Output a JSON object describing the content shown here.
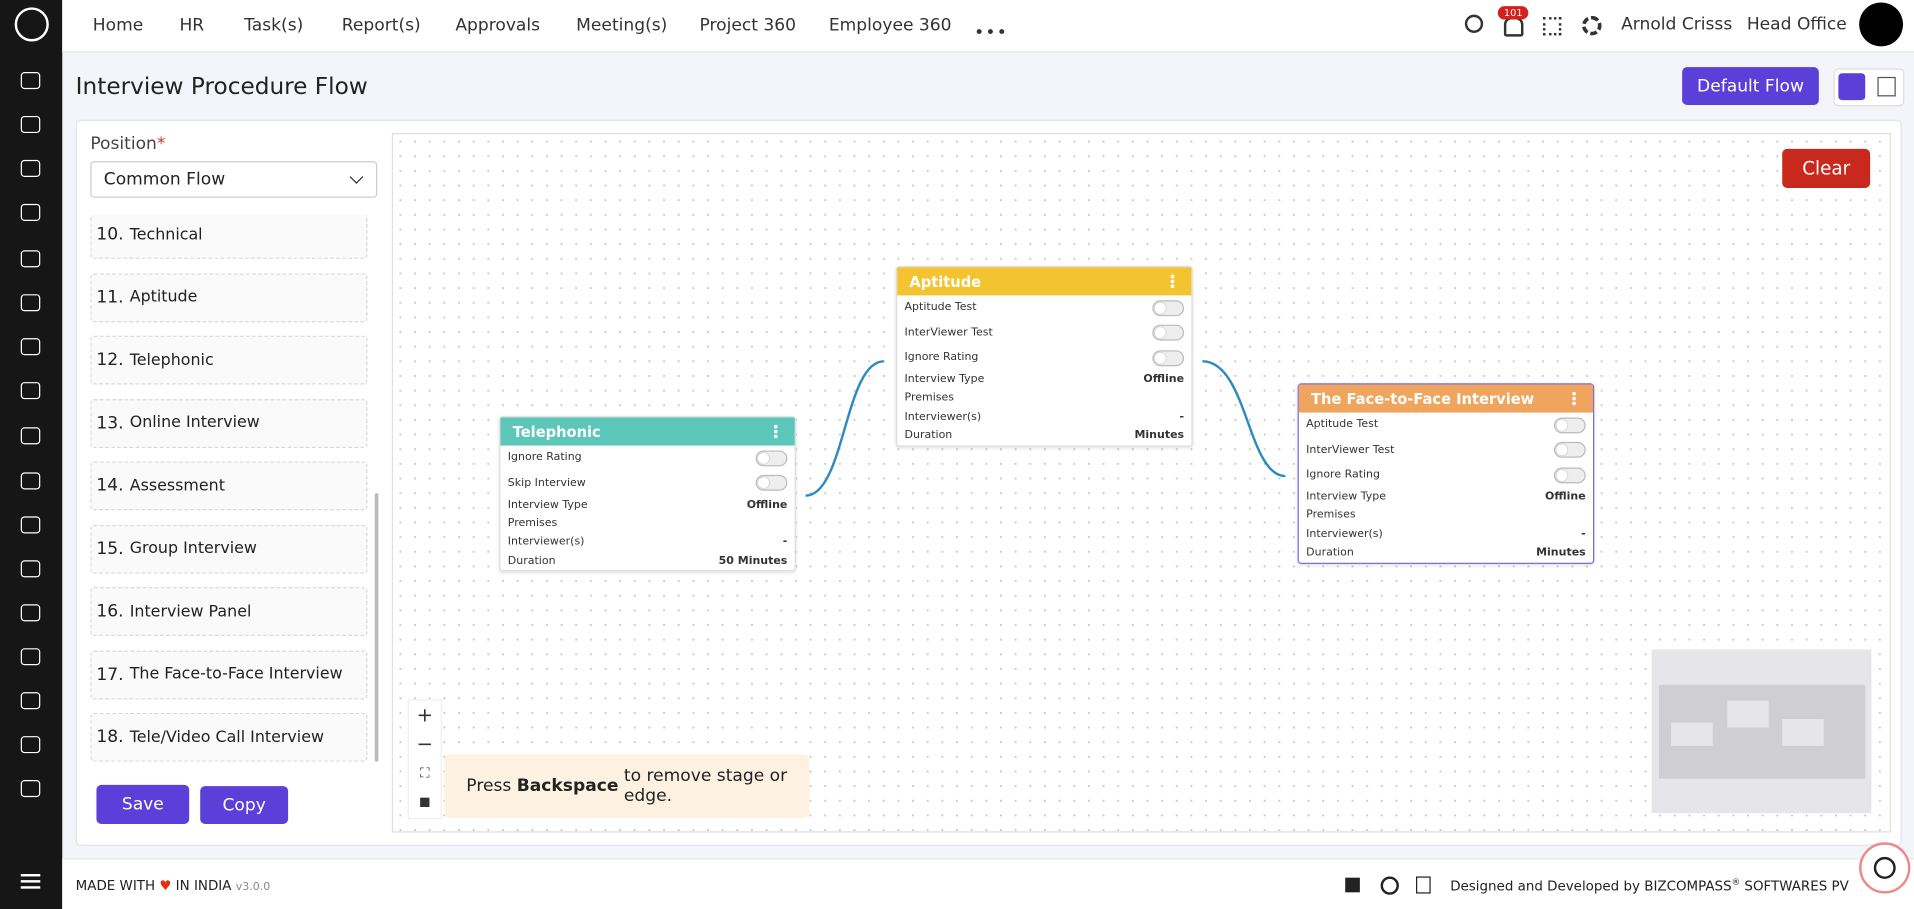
{
  "nav": [
    "Home",
    "HR",
    "Task(s)",
    "Report(s)",
    "Approvals",
    "Meeting(s)",
    "Project 360",
    "Employee 360"
  ],
  "user": {
    "name": "Arnold Crisss",
    "office": "Head Office",
    "notifications": "101"
  },
  "page": {
    "title": "Interview Procedure Flow",
    "default_button": "Default Flow"
  },
  "sidebar": {
    "position_label": "Position",
    "required": "*",
    "selected": "Common Flow",
    "stages": [
      {
        "number": "10.",
        "name": "Technical"
      },
      {
        "number": "11.",
        "name": "Aptitude"
      },
      {
        "number": "12.",
        "name": "Telephonic"
      },
      {
        "number": "13.",
        "name": "Online Interview"
      },
      {
        "number": "14.",
        "name": "Assessment"
      },
      {
        "number": "15.",
        "name": "Group Interview"
      },
      {
        "number": "16.",
        "name": "Interview Panel"
      },
      {
        "number": "17.",
        "name": "The Face-to-Face Interview"
      },
      {
        "number": "18.",
        "name": "Tele/Video Call Interview"
      }
    ],
    "save": "Save",
    "copy": "Copy"
  },
  "canvas": {
    "clear": "Clear",
    "hint": {
      "prefix": "Press",
      "key": "Backspace",
      "suffix": "to remove stage or edge."
    }
  },
  "nodes": [
    {
      "title": "Telephonic",
      "color": "#5cc6b8",
      "rows": [
        {
          "label": "Ignore Rating",
          "toggle": false
        },
        {
          "label": "Skip Interview",
          "toggle": false
        },
        {
          "label": "Interview Type",
          "value": "Offline"
        },
        {
          "label": "Premises"
        },
        {
          "label": "Interviewer(s)",
          "value": "-"
        },
        {
          "label": "Duration",
          "value": "50 Minutes"
        }
      ]
    },
    {
      "title": "Aptitude",
      "color": "#f4c430",
      "rows": [
        {
          "label": "Aptitude Test",
          "toggle": false
        },
        {
          "label": "InterViewer Test",
          "toggle": false
        },
        {
          "label": "Ignore Rating",
          "toggle": false
        },
        {
          "label": "Interview Type",
          "value": "Offline"
        },
        {
          "label": "Premises"
        },
        {
          "label": "Interviewer(s)",
          "value": "-"
        },
        {
          "label": "Duration",
          "value": "Minutes"
        }
      ]
    },
    {
      "title": "The Face-to-Face Interview",
      "color": "#f0a55f",
      "rows": [
        {
          "label": "Aptitude Test",
          "toggle": false
        },
        {
          "label": "InterViewer Test",
          "toggle": false
        },
        {
          "label": "Ignore Rating",
          "toggle": false
        },
        {
          "label": "Interview Type",
          "value": "Offline"
        },
        {
          "label": "Premises"
        },
        {
          "label": "Interviewer(s)",
          "value": "-"
        },
        {
          "label": "Duration",
          "value": "Minutes"
        }
      ]
    }
  ],
  "footer": {
    "made": "MADE WITH",
    "india": "IN INDIA",
    "version": "v3.0.0",
    "designed": "Designed and Developed by",
    "company": "BIZCOMPASS",
    "reg": "®",
    "suffix": "SOFTWARES PV"
  }
}
